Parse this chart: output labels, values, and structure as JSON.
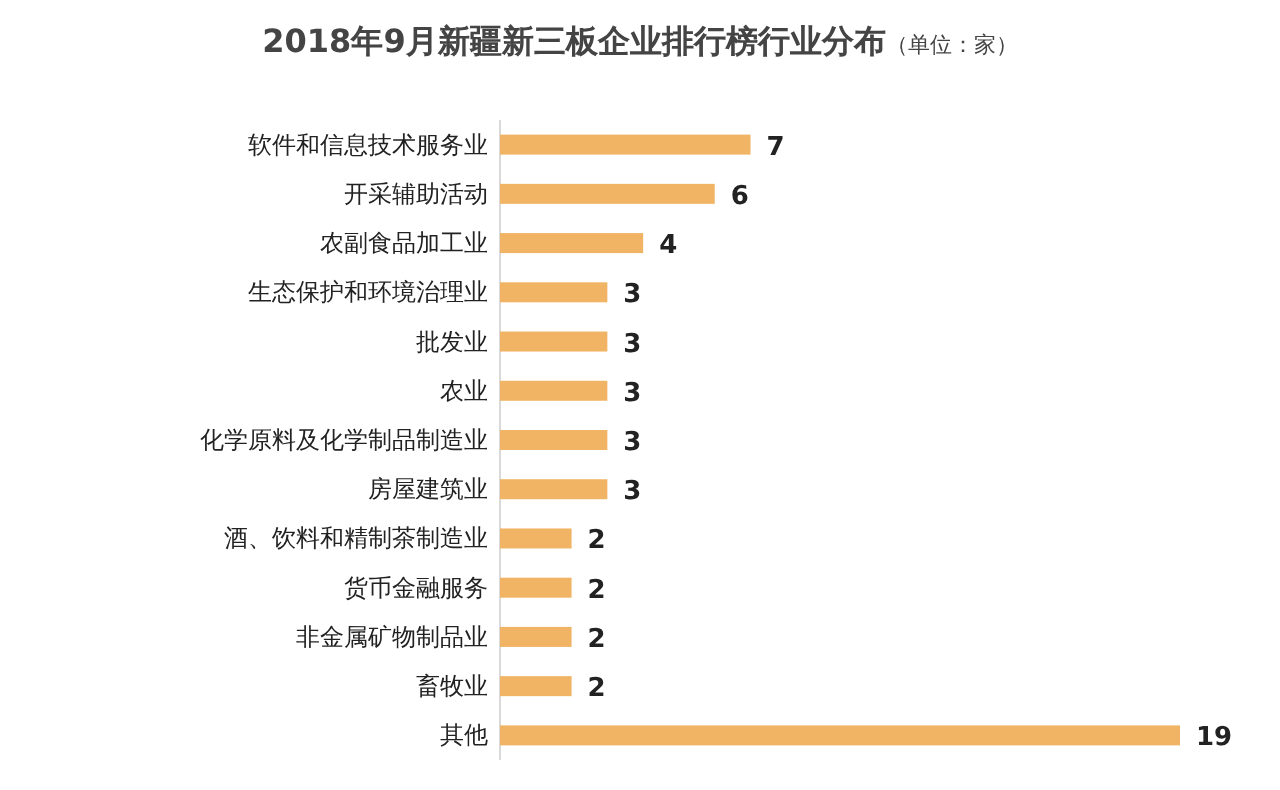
{
  "chart_data": {
    "type": "bar",
    "orientation": "horizontal",
    "title": "2018年9月新疆新三板企业排行榜行业分布",
    "subtitle": "（单位：家）",
    "categories": [
      "软件和信息技术服务业",
      "开采辅助活动",
      "农副食品加工业",
      "生态保护和环境治理业",
      "批发业",
      "农业",
      "化学原料及化学制品制造业",
      "房屋建筑业",
      "酒、饮料和精制茶制造业",
      "货币金融服务",
      "非金属矿物制品业",
      "畜牧业",
      "其他"
    ],
    "values": [
      7,
      6,
      4,
      3,
      3,
      3,
      3,
      3,
      2,
      2,
      2,
      2,
      19
    ],
    "color": "#f0b464",
    "data_labels": true
  }
}
